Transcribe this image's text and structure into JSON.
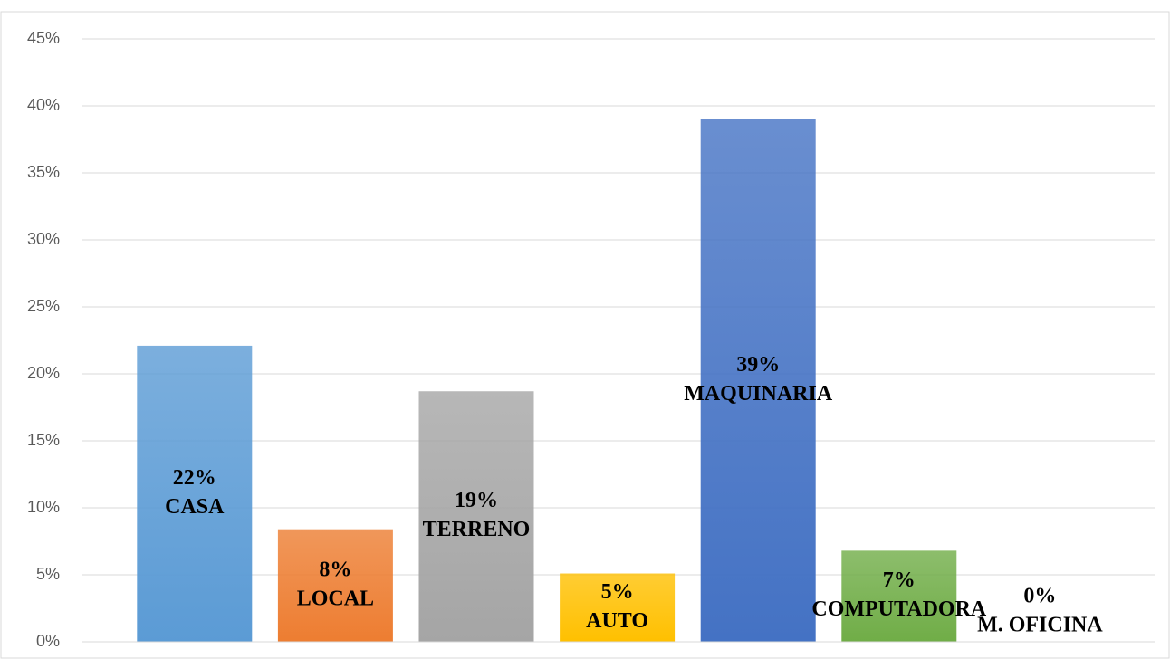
{
  "chart_data": {
    "type": "bar",
    "categories": [
      "CASA",
      "LOCAL",
      "TERRENO",
      "AUTO",
      "MAQUINARIA",
      "COMPUTADORA",
      "M. OFICINA"
    ],
    "values": [
      22.1,
      8.4,
      18.7,
      5.1,
      39.0,
      6.8,
      0
    ],
    "value_labels": [
      "22%",
      "8%",
      "19%",
      "5%",
      "39%",
      "7%",
      "0%"
    ],
    "colors": [
      "#5b9bd5",
      "#ed7d31",
      "#a5a5a5",
      "#ffc000",
      "#4472c4",
      "#70ad47",
      "#264478"
    ],
    "ylim": [
      0,
      45
    ],
    "yticks": [
      {
        "value": 0,
        "label": "0%"
      },
      {
        "value": 5,
        "label": "5%"
      },
      {
        "value": 10,
        "label": "10%"
      },
      {
        "value": 15,
        "label": "15%"
      },
      {
        "value": 20,
        "label": "20%"
      },
      {
        "value": 25,
        "label": "25%"
      },
      {
        "value": 30,
        "label": "30%"
      },
      {
        "value": 35,
        "label": "35%"
      },
      {
        "value": 40,
        "label": "40%"
      },
      {
        "value": 45,
        "label": "45%"
      }
    ],
    "grid": true
  }
}
